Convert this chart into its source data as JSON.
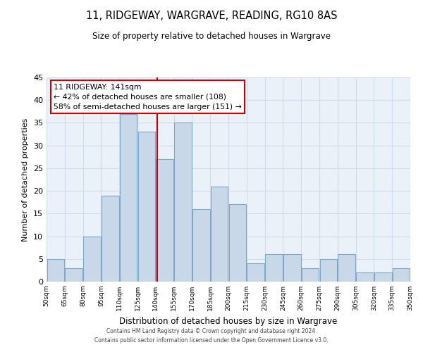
{
  "title": "11, RIDGEWAY, WARGRAVE, READING, RG10 8AS",
  "subtitle": "Size of property relative to detached houses in Wargrave",
  "xlabel": "Distribution of detached houses by size in Wargrave",
  "ylabel": "Number of detached properties",
  "footer_line1": "Contains HM Land Registry data © Crown copyright and database right 2024.",
  "footer_line2": "Contains public sector information licensed under the Open Government Licence v3.0.",
  "bar_edges": [
    50,
    65,
    80,
    95,
    110,
    125,
    140,
    155,
    170,
    185,
    200,
    215,
    230,
    245,
    260,
    275,
    290,
    305,
    320,
    335,
    350
  ],
  "bar_heights": [
    5,
    3,
    10,
    19,
    37,
    33,
    27,
    35,
    16,
    21,
    17,
    4,
    6,
    6,
    3,
    5,
    6,
    2,
    2,
    3
  ],
  "bar_color": "#c8d8e8",
  "bar_edgecolor": "#7aaac8",
  "property_line_x": 141,
  "property_line_color": "#cc0000",
  "annotation_line1": "11 RIDGEWAY: 141sqm",
  "annotation_line2": "← 42% of detached houses are smaller (108)",
  "annotation_line3": "58% of semi-detached houses are larger (151) →",
  "annotation_box_edgecolor": "#cc0000",
  "annotation_box_facecolor": "#ffffff",
  "ylim": [
    0,
    45
  ],
  "xlim": [
    50,
    350
  ],
  "tick_labels": [
    "50sqm",
    "65sqm",
    "80sqm",
    "95sqm",
    "110sqm",
    "125sqm",
    "140sqm",
    "155sqm",
    "170sqm",
    "185sqm",
    "200sqm",
    "215sqm",
    "230sqm",
    "245sqm",
    "260sqm",
    "275sqm",
    "290sqm",
    "305sqm",
    "320sqm",
    "335sqm",
    "350sqm"
  ],
  "grid_color": "#d0dce8",
  "background_color": "#eaf1f8"
}
